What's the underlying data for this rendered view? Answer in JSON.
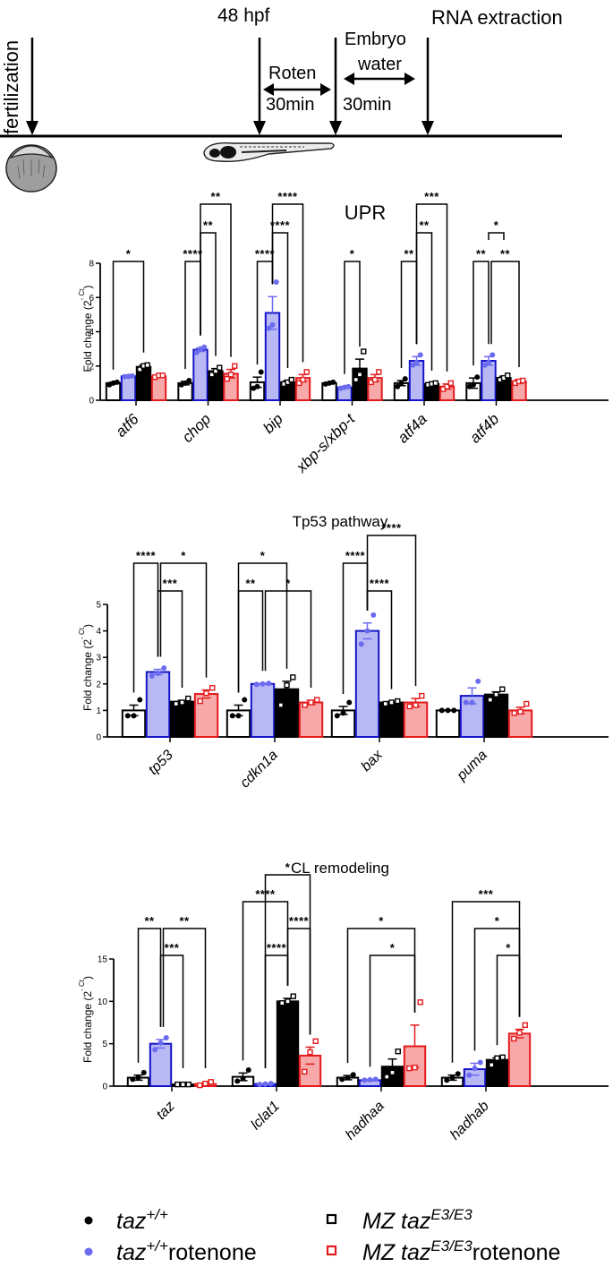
{
  "timeline": {
    "events": [
      {
        "label": "fertilization",
        "orientation": "vertical"
      },
      {
        "label": "48 hpf"
      },
      {
        "label": "RNA extraction"
      }
    ],
    "intervals": [
      {
        "label_top": "Roten",
        "label_bottom": "30min"
      },
      {
        "label_top": "Embryo water",
        "label_top_1": "Embryo",
        "label_top_2": "water",
        "label_bottom": "30min"
      }
    ],
    "images": [
      "embryo-drawing",
      "larva-drawing"
    ]
  },
  "groups": [
    {
      "name": "taz+/+",
      "base": "taz",
      "sup": "+/+",
      "suffix": "",
      "marker": "circle",
      "color": "#000000",
      "fill": "#ffffff",
      "edge": "#000000",
      "pt": "#000000"
    },
    {
      "name": "taz+/+rotenone",
      "base": "taz",
      "sup": "+/+",
      "suffix": "rotenone",
      "marker": "circle",
      "color": "#6b6bef",
      "fill": "#b8b8f5",
      "edge": "#1414c8",
      "pt": "#6b6bef"
    },
    {
      "name": "MZ tazE3/E3",
      "base": "MZ taz",
      "sup": "E3/E3",
      "suffix": "",
      "marker": "square",
      "color": "#000000",
      "fill": "#000000",
      "edge": "#000000",
      "pt": "#ffffff"
    },
    {
      "name": "MZ tazE3/E3rotenone",
      "base": "MZ taz",
      "sup": "E3/E3",
      "suffix": "rotenone",
      "marker": "square",
      "color": "#e41a1c",
      "fill": "#f7a8a8",
      "edge": "#e41a1c",
      "pt": "#ffffff"
    }
  ],
  "chart_data": [
    {
      "type": "bar",
      "title": "UPR",
      "ylabel": "Fold change (2^-ΔΔCt)",
      "ylabel_main": "Fold change (2",
      "ylabel_sup": "-   Ct",
      "ylabel_close": ")",
      "ylim": [
        0,
        8
      ],
      "yticks": [
        0,
        2,
        4,
        6,
        8
      ],
      "categories": [
        "atf6",
        "chop",
        "bip",
        "xbp-s/xbp-t",
        "atf4a",
        "atf4b"
      ],
      "series": [
        {
          "name": "taz+/+",
          "values": [
            1.0,
            1.0,
            1.05,
            1.0,
            1.0,
            1.0
          ],
          "sem": [
            0.05,
            0.1,
            0.3,
            0.05,
            0.15,
            0.3
          ],
          "points": [
            [
              0.9,
              1.0,
              1.05
            ],
            [
              0.9,
              1.0,
              1.15
            ],
            [
              0.7,
              0.8,
              1.65
            ],
            [
              0.95,
              1.0,
              1.05
            ],
            [
              0.8,
              1.0,
              1.25
            ],
            [
              0.8,
              0.9,
              1.35
            ]
          ]
        },
        {
          "name": "taz+/+rotenone",
          "values": [
            1.4,
            2.95,
            5.1,
            0.75,
            2.3,
            2.3
          ],
          "sem": [
            0.03,
            0.1,
            0.95,
            0.05,
            0.25,
            0.25
          ],
          "points": [
            [
              1.38,
              1.4,
              1.42
            ],
            [
              2.8,
              3.0,
              3.1
            ],
            [
              4.2,
              4.4,
              6.9
            ],
            [
              0.7,
              0.75,
              0.8
            ],
            [
              2.05,
              2.2,
              2.65
            ],
            [
              2.05,
              2.2,
              2.65
            ]
          ]
        },
        {
          "name": "MZ tazE3/E3",
          "values": [
            1.95,
            1.7,
            1.05,
            1.85,
            0.95,
            1.3
          ],
          "sem": [
            0.1,
            0.15,
            0.1,
            0.55,
            0.05,
            0.1
          ],
          "points": [
            [
              1.8,
              2.0,
              2.05
            ],
            [
              1.5,
              1.7,
              1.9
            ],
            [
              0.95,
              1.05,
              1.2
            ],
            [
              1.2,
              1.5,
              2.85
            ],
            [
              0.9,
              0.95,
              1.0
            ],
            [
              1.2,
              1.3,
              1.45
            ]
          ]
        },
        {
          "name": "MZ tazE3/E3rotenone",
          "values": [
            1.4,
            1.55,
            1.3,
            1.3,
            0.8,
            1.1
          ],
          "sem": [
            0.05,
            0.25,
            0.2,
            0.2,
            0.15,
            0.1
          ],
          "points": [
            [
              1.35,
              1.45,
              1.45
            ],
            [
              1.25,
              1.5,
              2.0
            ],
            [
              1.0,
              1.2,
              1.65
            ],
            [
              1.05,
              1.2,
              1.65
            ],
            [
              0.65,
              0.8,
              1.0
            ],
            [
              1.0,
              1.1,
              1.15
            ]
          ]
        }
      ],
      "significance": [
        {
          "cat": 0,
          "a": 0,
          "b": 2,
          "label": "*",
          "level": 0
        },
        {
          "cat": 1,
          "a": 0,
          "b": 1,
          "label": "****",
          "level": 0
        },
        {
          "cat": 1,
          "a": 1,
          "b": 2,
          "label": "**",
          "level": 1
        },
        {
          "cat": 1,
          "a": 1,
          "b": 3,
          "label": "**",
          "level": 2
        },
        {
          "cat": 2,
          "a": 0,
          "b": 1,
          "label": "****",
          "level": 0
        },
        {
          "cat": 2,
          "a": 1,
          "b": 2,
          "label": "****",
          "level": 1
        },
        {
          "cat": 2,
          "a": 1,
          "b": 3,
          "label": "****",
          "level": 2
        },
        {
          "cat": 3,
          "a": 1,
          "b": 2,
          "label": "*",
          "level": 0
        },
        {
          "cat": 4,
          "a": 0,
          "b": 1,
          "label": "**",
          "level": 0
        },
        {
          "cat": 4,
          "a": 1,
          "b": 2,
          "label": "**",
          "level": 1
        },
        {
          "cat": 4,
          "a": 1,
          "b": 3,
          "label": "***",
          "level": 2
        },
        {
          "cat": 5,
          "a": 0,
          "b": 1,
          "label": "**",
          "level": 0
        },
        {
          "cat": 5,
          "a": 1,
          "b": 3,
          "label": "**",
          "level": 0,
          "offset": 1
        },
        {
          "cat": 5,
          "a": 1,
          "b": 2,
          "label": "*",
          "level": 1,
          "short": true
        }
      ],
      "grid": false,
      "legend": "bottom"
    },
    {
      "type": "bar",
      "title": "Tp53 pathway",
      "ylabel": "Fold change (2^-ΔΔCt)",
      "ylabel_main": "Fold change (2",
      "ylabel_sup": "-   Ct",
      "ylabel_close": ")",
      "ylim": [
        0,
        5
      ],
      "yticks": [
        0,
        1,
        2,
        3,
        4,
        5
      ],
      "categories": [
        "tp53",
        "cdkn1a",
        "bax",
        "puma"
      ],
      "series": [
        {
          "name": "taz+/+",
          "values": [
            1.0,
            1.0,
            1.0,
            1.0
          ],
          "sem": [
            0.2,
            0.2,
            0.15,
            0.01
          ],
          "points": [
            [
              0.8,
              0.8,
              1.4
            ],
            [
              0.8,
              0.8,
              1.4
            ],
            [
              0.8,
              0.9,
              1.3
            ],
            [
              1.0,
              1.0,
              1.0
            ]
          ]
        },
        {
          "name": "taz+/+rotenone",
          "values": [
            2.45,
            2.0,
            4.0,
            1.55
          ],
          "sem": [
            0.1,
            0.02,
            0.3,
            0.3
          ],
          "points": [
            [
              2.3,
              2.4,
              2.6
            ],
            [
              1.98,
              2.0,
              2.02
            ],
            [
              3.5,
              4.0,
              4.6
            ],
            [
              1.3,
              1.3,
              2.1
            ]
          ]
        },
        {
          "name": "MZ tazE3/E3",
          "values": [
            1.33,
            1.8,
            1.3,
            1.6
          ],
          "sem": [
            0.05,
            0.3,
            0.03,
            0.1
          ],
          "points": [
            [
              1.25,
              1.3,
              1.45
            ],
            [
              1.2,
              1.95,
              2.25
            ],
            [
              1.25,
              1.3,
              1.35
            ],
            [
              1.4,
              1.6,
              1.8
            ]
          ]
        },
        {
          "name": "MZ tazE3/E3rotenone",
          "values": [
            1.62,
            1.3,
            1.3,
            1.0
          ],
          "sem": [
            0.15,
            0.08,
            0.15,
            0.12
          ],
          "points": [
            [
              1.35,
              1.65,
              1.85
            ],
            [
              1.2,
              1.3,
              1.4
            ],
            [
              1.15,
              1.2,
              1.55
            ],
            [
              0.9,
              0.95,
              1.25
            ]
          ]
        }
      ],
      "significance": [
        {
          "cat": 0,
          "a": 0,
          "b": 1,
          "label": "****",
          "level": 1
        },
        {
          "cat": 0,
          "a": 1,
          "b": 3,
          "label": "*",
          "level": 1,
          "offset": 1
        },
        {
          "cat": 0,
          "a": 1,
          "b": 2,
          "label": "***",
          "level": 0
        },
        {
          "cat": 1,
          "a": 0,
          "b": 1,
          "label": "**",
          "level": 0
        },
        {
          "cat": 1,
          "a": 1,
          "b": 3,
          "label": "*",
          "level": 0,
          "offset": 1
        },
        {
          "cat": 1,
          "a": 0,
          "b": 2,
          "label": "*",
          "level": 1
        },
        {
          "cat": 2,
          "a": 1,
          "b": 2,
          "label": "****",
          "level": 0
        },
        {
          "cat": 2,
          "a": 0,
          "b": 1,
          "label": "****",
          "level": 1
        },
        {
          "cat": 2,
          "a": 1,
          "b": 3,
          "label": "****",
          "level": 2
        }
      ],
      "grid": false,
      "legend": "bottom"
    },
    {
      "type": "bar",
      "title": "CL remodeling",
      "ylabel": "Fold change (2^-ΔΔCt)",
      "ylabel_main": "Fold change (2",
      "ylabel_sup": "-   Ct",
      "ylabel_close": ")",
      "ylim": [
        0,
        15
      ],
      "yticks": [
        0,
        5,
        10,
        15
      ],
      "categories": [
        "taz",
        "lclat1",
        "hadhaa",
        "hadhab"
      ],
      "series": [
        {
          "name": "taz+/+",
          "values": [
            1.0,
            1.1,
            1.0,
            1.0
          ],
          "sem": [
            0.3,
            0.45,
            0.25,
            0.3
          ],
          "points": [
            [
              0.8,
              1.0,
              1.6
            ],
            [
              0.6,
              0.9,
              1.9
            ],
            [
              0.8,
              1.0,
              1.35
            ],
            [
              0.7,
              1.0,
              1.45
            ]
          ]
        },
        {
          "name": "taz+/+rotenone",
          "values": [
            5.0,
            0.25,
            0.7,
            2.0
          ],
          "sem": [
            0.5,
            0.05,
            0.1,
            0.7
          ],
          "points": [
            [
              4.3,
              5.1,
              5.7
            ],
            [
              0.2,
              0.25,
              0.3
            ],
            [
              0.7,
              0.75,
              0.8
            ],
            [
              1.3,
              2.1,
              2.8
            ]
          ]
        },
        {
          "name": "MZ tazE3/E3",
          "values": [
            0.2,
            10.0,
            2.3,
            3.1
          ],
          "sem": [
            0.02,
            0.35,
            0.9,
            0.25
          ],
          "points": [
            [
              0.2,
              0.2,
              0.2
            ],
            [
              9.8,
              10.0,
              10.6
            ],
            [
              1.1,
              1.6,
              4.1
            ],
            [
              2.5,
              3.3,
              3.4
            ]
          ]
        },
        {
          "name": "MZ tazE3/E3rotenone",
          "values": [
            0.25,
            3.6,
            4.7,
            6.2
          ],
          "sem": [
            0.1,
            1.0,
            2.5,
            0.5
          ],
          "points": [
            [
              0.1,
              0.3,
              0.5
            ],
            [
              1.7,
              4.0,
              5.3
            ],
            [
              2.1,
              2.2,
              9.9
            ],
            [
              5.6,
              6.3,
              7.2
            ]
          ]
        }
      ],
      "significance": [
        {
          "cat": 0,
          "a": 0,
          "b": 1,
          "label": "**",
          "level": 1
        },
        {
          "cat": 0,
          "a": 1,
          "b": 3,
          "label": "**",
          "level": 1,
          "offset": 1
        },
        {
          "cat": 0,
          "a": 1,
          "b": 2,
          "label": "***",
          "level": 0
        },
        {
          "cat": 1,
          "a": 1,
          "b": 2,
          "label": "****",
          "level": 0
        },
        {
          "cat": 1,
          "a": 2,
          "b": 3,
          "label": "****",
          "level": 1
        },
        {
          "cat": 1,
          "a": 0,
          "b": 2,
          "label": "****",
          "level": 2
        },
        {
          "cat": 1,
          "a": 1,
          "b": 3,
          "label": "*",
          "level": 3
        },
        {
          "cat": 2,
          "a": 1,
          "b": 3,
          "label": "*",
          "level": 0
        },
        {
          "cat": 2,
          "a": 0,
          "b": 3,
          "label": "*",
          "level": 1
        },
        {
          "cat": 3,
          "a": 2,
          "b": 3,
          "label": "*",
          "level": 0
        },
        {
          "cat": 3,
          "a": 1,
          "b": 3,
          "label": "*",
          "level": 1
        },
        {
          "cat": 3,
          "a": 0,
          "b": 3,
          "label": "***",
          "level": 2
        }
      ],
      "grid": false,
      "legend": "bottom"
    }
  ]
}
